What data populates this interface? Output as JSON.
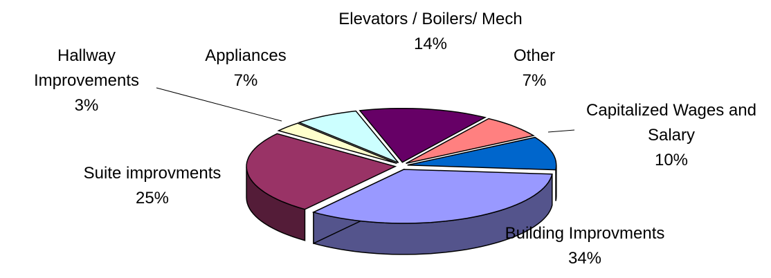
{
  "chart_data": {
    "type": "pie",
    "categories": [
      "Capitalized Wages and Salary",
      "Building Improvments",
      "Suite improvments",
      "Hallway Improvements",
      "Appliances",
      "Elevators / Boilers/ Mech",
      "Other"
    ],
    "values": [
      10,
      34,
      25,
      3,
      7,
      14,
      7
    ],
    "value_labels": [
      "10%",
      "34%",
      "25%",
      "3%",
      "7%",
      "14%",
      "7%"
    ],
    "colors": [
      "#0066cc",
      "#9999ff",
      "#993366",
      "#ffffcc",
      "#ccffff",
      "#660066",
      "#ff8080"
    ]
  }
}
